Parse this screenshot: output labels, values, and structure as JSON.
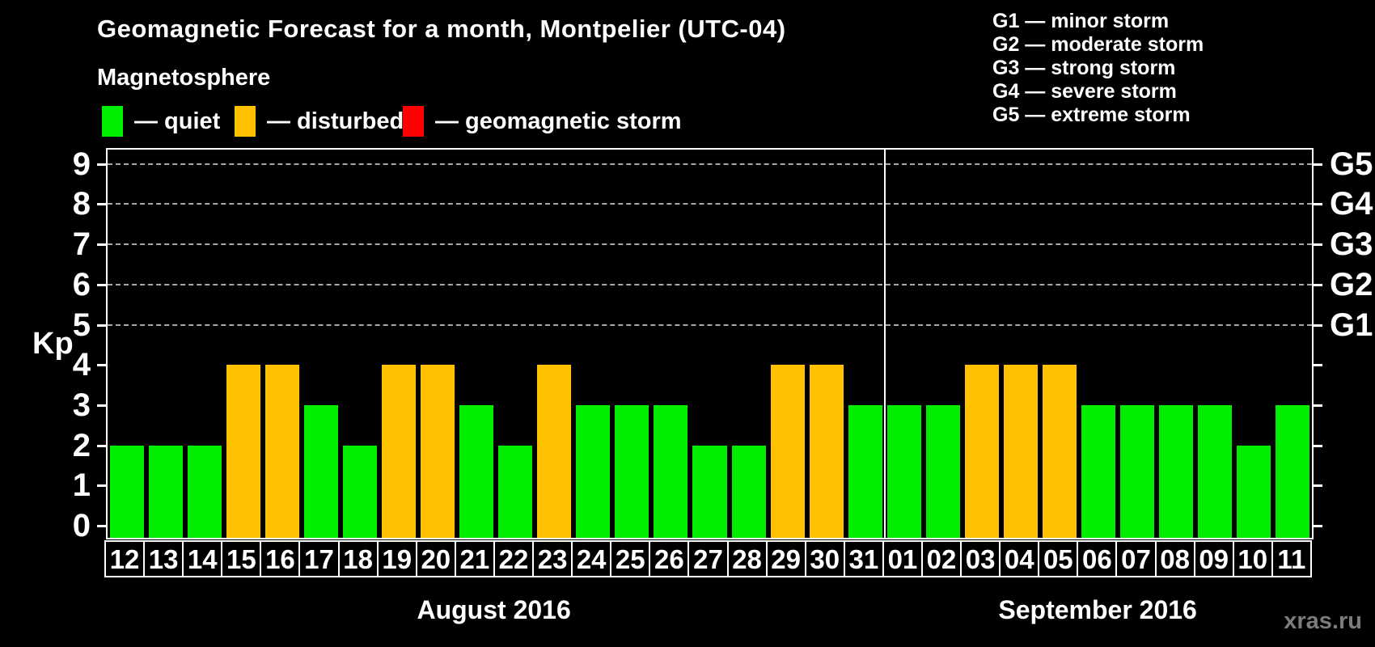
{
  "title": "Geomagnetic Forecast for a month, Montpelier (UTC-04)",
  "subtitle": "Magnetosphere",
  "legend": {
    "items": [
      {
        "name": "quiet",
        "label": "— quiet",
        "color": "#00ee00"
      },
      {
        "name": "disturbed",
        "label": "— disturbed",
        "color": "#ffc000"
      },
      {
        "name": "geomagnetic-storm",
        "label": "— geomagnetic storm",
        "color": "#ff0000"
      }
    ]
  },
  "storm_scale_legend": {
    "lines": [
      "G1 — minor storm",
      "G2 — moderate storm",
      "G3 — strong storm",
      "G4 — severe storm",
      "G5 — extreme storm"
    ]
  },
  "watermark": "xras.ru",
  "chart_data": {
    "type": "bar",
    "title": "Geomagnetic Forecast for a month, Montpelier (UTC-04)",
    "ylabel": "Kp",
    "ylim": [
      0,
      9
    ],
    "yticks": [
      0,
      1,
      2,
      3,
      4,
      5,
      6,
      7,
      8,
      9
    ],
    "gridlines_at": [
      5,
      6,
      7,
      8,
      9
    ],
    "grid_style": "dashed horizontal lines at G-storm levels only",
    "legend_position": "top-left",
    "right_axis": [
      {
        "kp": 5,
        "label": "G1"
      },
      {
        "kp": 6,
        "label": "G2"
      },
      {
        "kp": 7,
        "label": "G3"
      },
      {
        "kp": 8,
        "label": "G4"
      },
      {
        "kp": 9,
        "label": "G5"
      }
    ],
    "state_colors": {
      "quiet": "#00ee00",
      "disturbed": "#ffc000",
      "storm": "#ff0000"
    },
    "month_groups": [
      {
        "label": "August 2016",
        "count": 20
      },
      {
        "label": "September 2016",
        "count": 11
      }
    ],
    "categories": [
      "12",
      "13",
      "14",
      "15",
      "16",
      "17",
      "18",
      "19",
      "20",
      "21",
      "22",
      "23",
      "24",
      "25",
      "26",
      "27",
      "28",
      "29",
      "30",
      "31",
      "01",
      "02",
      "03",
      "04",
      "05",
      "06",
      "07",
      "08",
      "09",
      "10",
      "11"
    ],
    "values": [
      2,
      2,
      2,
      4,
      4,
      3,
      2,
      4,
      4,
      3,
      2,
      4,
      3,
      3,
      3,
      2,
      2,
      4,
      4,
      3,
      3,
      3,
      4,
      4,
      4,
      3,
      3,
      3,
      3,
      2,
      3
    ],
    "states": [
      "quiet",
      "quiet",
      "quiet",
      "disturbed",
      "disturbed",
      "quiet",
      "quiet",
      "disturbed",
      "disturbed",
      "quiet",
      "quiet",
      "disturbed",
      "quiet",
      "quiet",
      "quiet",
      "quiet",
      "quiet",
      "disturbed",
      "disturbed",
      "quiet",
      "quiet",
      "quiet",
      "disturbed",
      "disturbed",
      "disturbed",
      "quiet",
      "quiet",
      "quiet",
      "quiet",
      "quiet",
      "quiet"
    ]
  }
}
